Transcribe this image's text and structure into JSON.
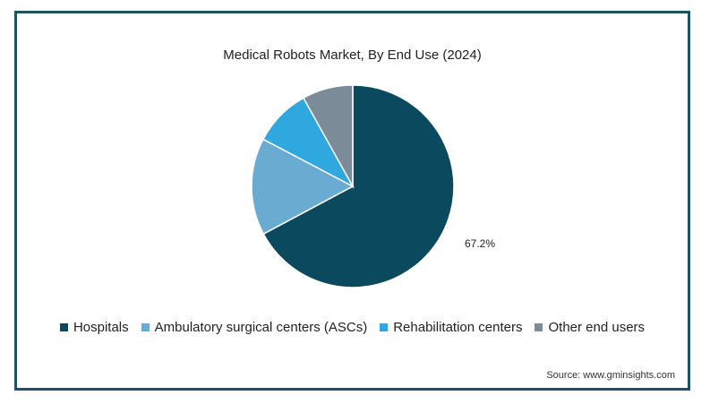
{
  "chart_data": {
    "type": "pie",
    "title": "Medical Robots Market, By End Use (2024)",
    "slices": [
      {
        "name": "Hospitals",
        "value": 67.2,
        "color": "#0b4a5e",
        "label": "67.2%"
      },
      {
        "name": "Ambulatory surgical centers (ASCs)",
        "value": 15.5,
        "color": "#6aabd2",
        "label": ""
      },
      {
        "name": "Rehabilitation centers",
        "value": 9.2,
        "color": "#2fa7df",
        "label": ""
      },
      {
        "name": "Other end users",
        "value": 8.1,
        "color": "#7c8b98",
        "label": ""
      }
    ],
    "legend_position": "bottom"
  },
  "source": "Source: www.gminsights.com"
}
